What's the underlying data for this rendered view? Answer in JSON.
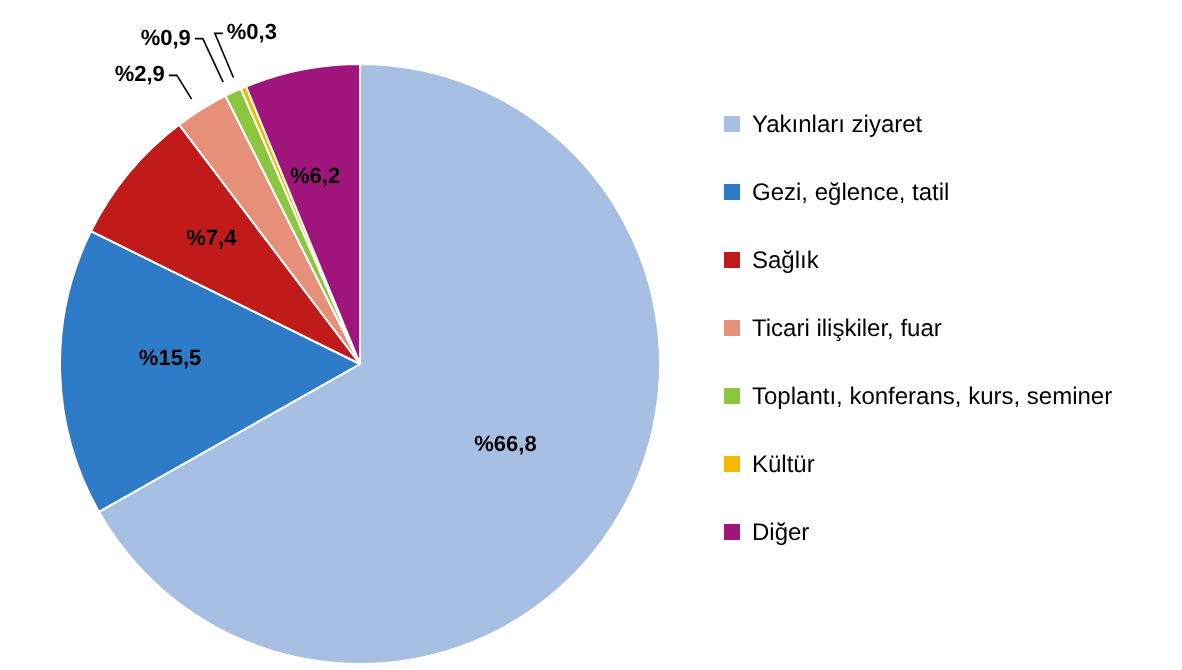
{
  "chart_data": {
    "type": "pie",
    "categories": [
      "Yakınları ziyaret",
      "Gezi, eğlence, tatil",
      "Sağlık",
      "Ticari ilişkiler, fuar",
      "Toplantı, konferans, kurs, seminer",
      "Kültür",
      "Diğer"
    ],
    "values": [
      66.8,
      15.5,
      7.4,
      2.9,
      0.9,
      0.3,
      6.2
    ],
    "value_labels": [
      "%66,8",
      "%15,5",
      "%7,4",
      "%2,9",
      "%0,9",
      "%0,3",
      "%6,2"
    ],
    "colors": [
      "#a6bfe3",
      "#2e7bc7",
      "#c01a1a",
      "#e6907a",
      "#8cc63f",
      "#f5b800",
      "#a0157c"
    ],
    "legend": "right"
  }
}
